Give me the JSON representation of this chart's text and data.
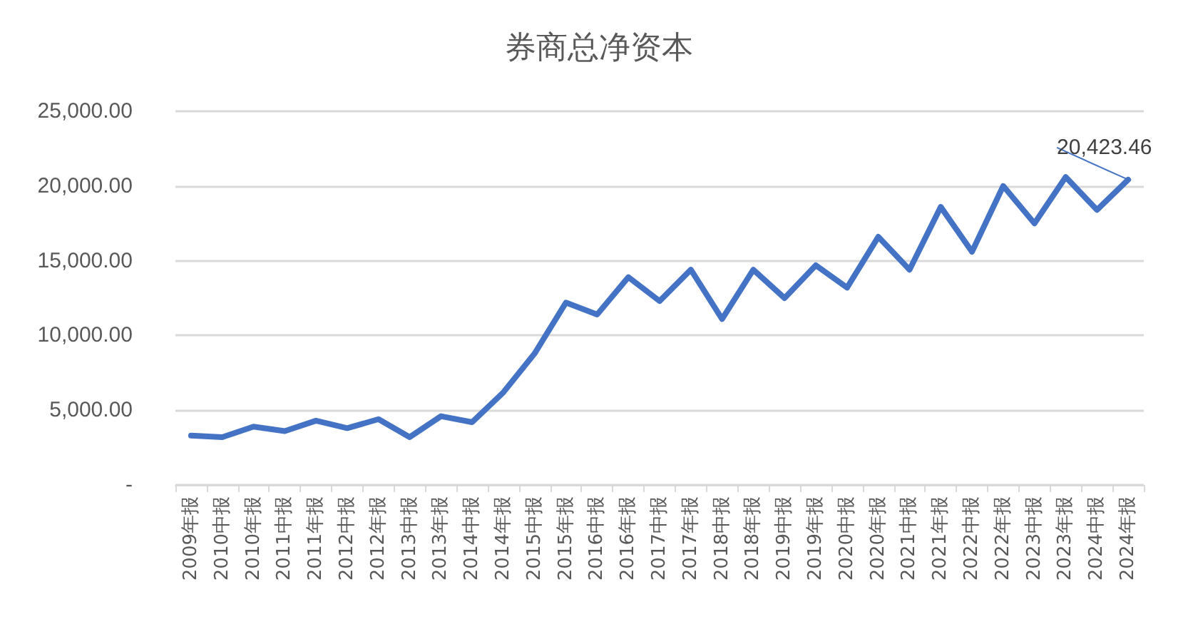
{
  "chart_data": {
    "type": "line",
    "title": "券商总净资本",
    "categories": [
      "2009年报",
      "2010中报",
      "2010年报",
      "2011中报",
      "2011年报",
      "2012中报",
      "2012年报",
      "2013中报",
      "2013年报",
      "2014中报",
      "2014年报",
      "2015中报",
      "2015年报",
      "2016中报",
      "2016年报",
      "2017中报",
      "2017年报",
      "2018中报",
      "2018年报",
      "2019中报",
      "2019年报",
      "2020中报",
      "2020年报",
      "2021中报",
      "2021年报",
      "2022中报",
      "2022年报",
      "2023中报",
      "2023年报",
      "2024中报",
      "2024年报"
    ],
    "series": [
      {
        "color": "#4472c4",
        "values": [
          3300,
          3200,
          3900,
          3600,
          4300,
          3800,
          4400,
          3200,
          4600,
          4200,
          6200,
          8800,
          12200,
          11400,
          13900,
          12300,
          14400,
          11100,
          14400,
          12500,
          14700,
          13200,
          16600,
          14400,
          18600,
          15600,
          20000,
          17500,
          20600,
          18400,
          20423.46
        ],
        "value_labels": [
          null,
          null,
          null,
          null,
          null,
          null,
          null,
          null,
          null,
          null,
          null,
          null,
          null,
          null,
          null,
          null,
          null,
          null,
          null,
          null,
          null,
          null,
          null,
          null,
          null,
          null,
          null,
          null,
          null,
          null,
          "20,423.46"
        ]
      }
    ],
    "ylim": [
      0,
      25000
    ],
    "yticks": [
      {
        "value": 0,
        "label": "-"
      },
      {
        "value": 5000,
        "label": "5,000.00"
      },
      {
        "value": 10000,
        "label": "10,000.00"
      },
      {
        "value": 15000,
        "label": "15,000.00"
      },
      {
        "value": 20000,
        "label": "20,000.00"
      },
      {
        "value": 25000,
        "label": "25,000.00"
      }
    ],
    "grid": "y",
    "marker": "none",
    "line_style": "solid"
  }
}
